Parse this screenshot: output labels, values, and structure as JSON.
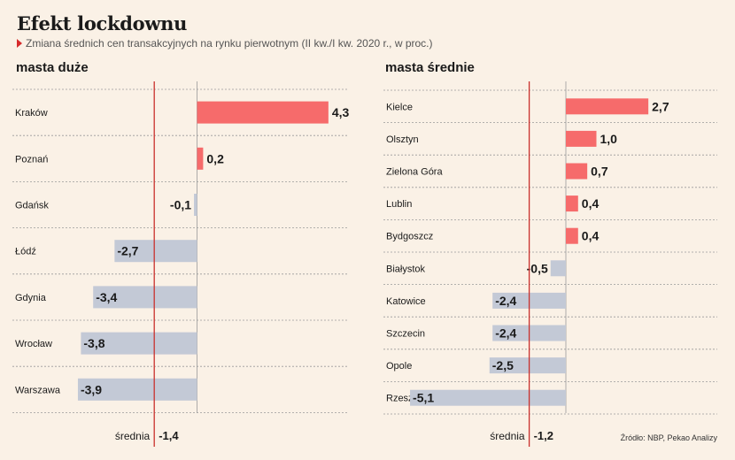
{
  "header": {
    "title": "Efekt lockdownu",
    "subtitle": "Zmiana średnich cen transakcyjnych na rynku pierwotnym (II kw./I kw. 2020 r., w proc.)"
  },
  "source": "Źródło: NBP, Pekao Analizy",
  "colors": {
    "positive": "#f66b6b",
    "negative": "#c3c9d6",
    "average_line": "#c9302c",
    "background": "#faf1e6"
  },
  "chart_data": [
    {
      "type": "bar",
      "title": "masta duże",
      "categories": [
        "Kraków",
        "Poznań",
        "Gdańsk",
        "Łódź",
        "Gdynia",
        "Wrocław",
        "Warszawa"
      ],
      "values": [
        4.3,
        0.2,
        -0.1,
        -2.7,
        -3.4,
        -3.8,
        -3.9
      ],
      "value_labels": [
        "4,3",
        "0,2",
        "-0,1",
        "-2,7",
        "-3,4",
        "-3,8",
        "-3,9"
      ],
      "average": {
        "label": "średnia",
        "value": -1.4,
        "value_label": "-1,4"
      }
    },
    {
      "type": "bar",
      "title": "masta średnie",
      "categories": [
        "Kielce",
        "Olsztyn",
        "Zielona Góra",
        "Lublin",
        "Bydgoszcz",
        "Białystok",
        "Katowice",
        "Szczecin",
        "Opole",
        "Rzeszów"
      ],
      "values": [
        2.7,
        1.0,
        0.7,
        0.4,
        0.4,
        -0.5,
        -2.4,
        -2.4,
        -2.5,
        -5.1
      ],
      "value_labels": [
        "2,7",
        "1,0",
        "0,7",
        "0,4",
        "0,4",
        "-0,5",
        "-2,4",
        "-2,4",
        "-2,5",
        "-5,1"
      ],
      "average": {
        "label": "średnia",
        "value": -1.2,
        "value_label": "-1,2"
      }
    }
  ]
}
